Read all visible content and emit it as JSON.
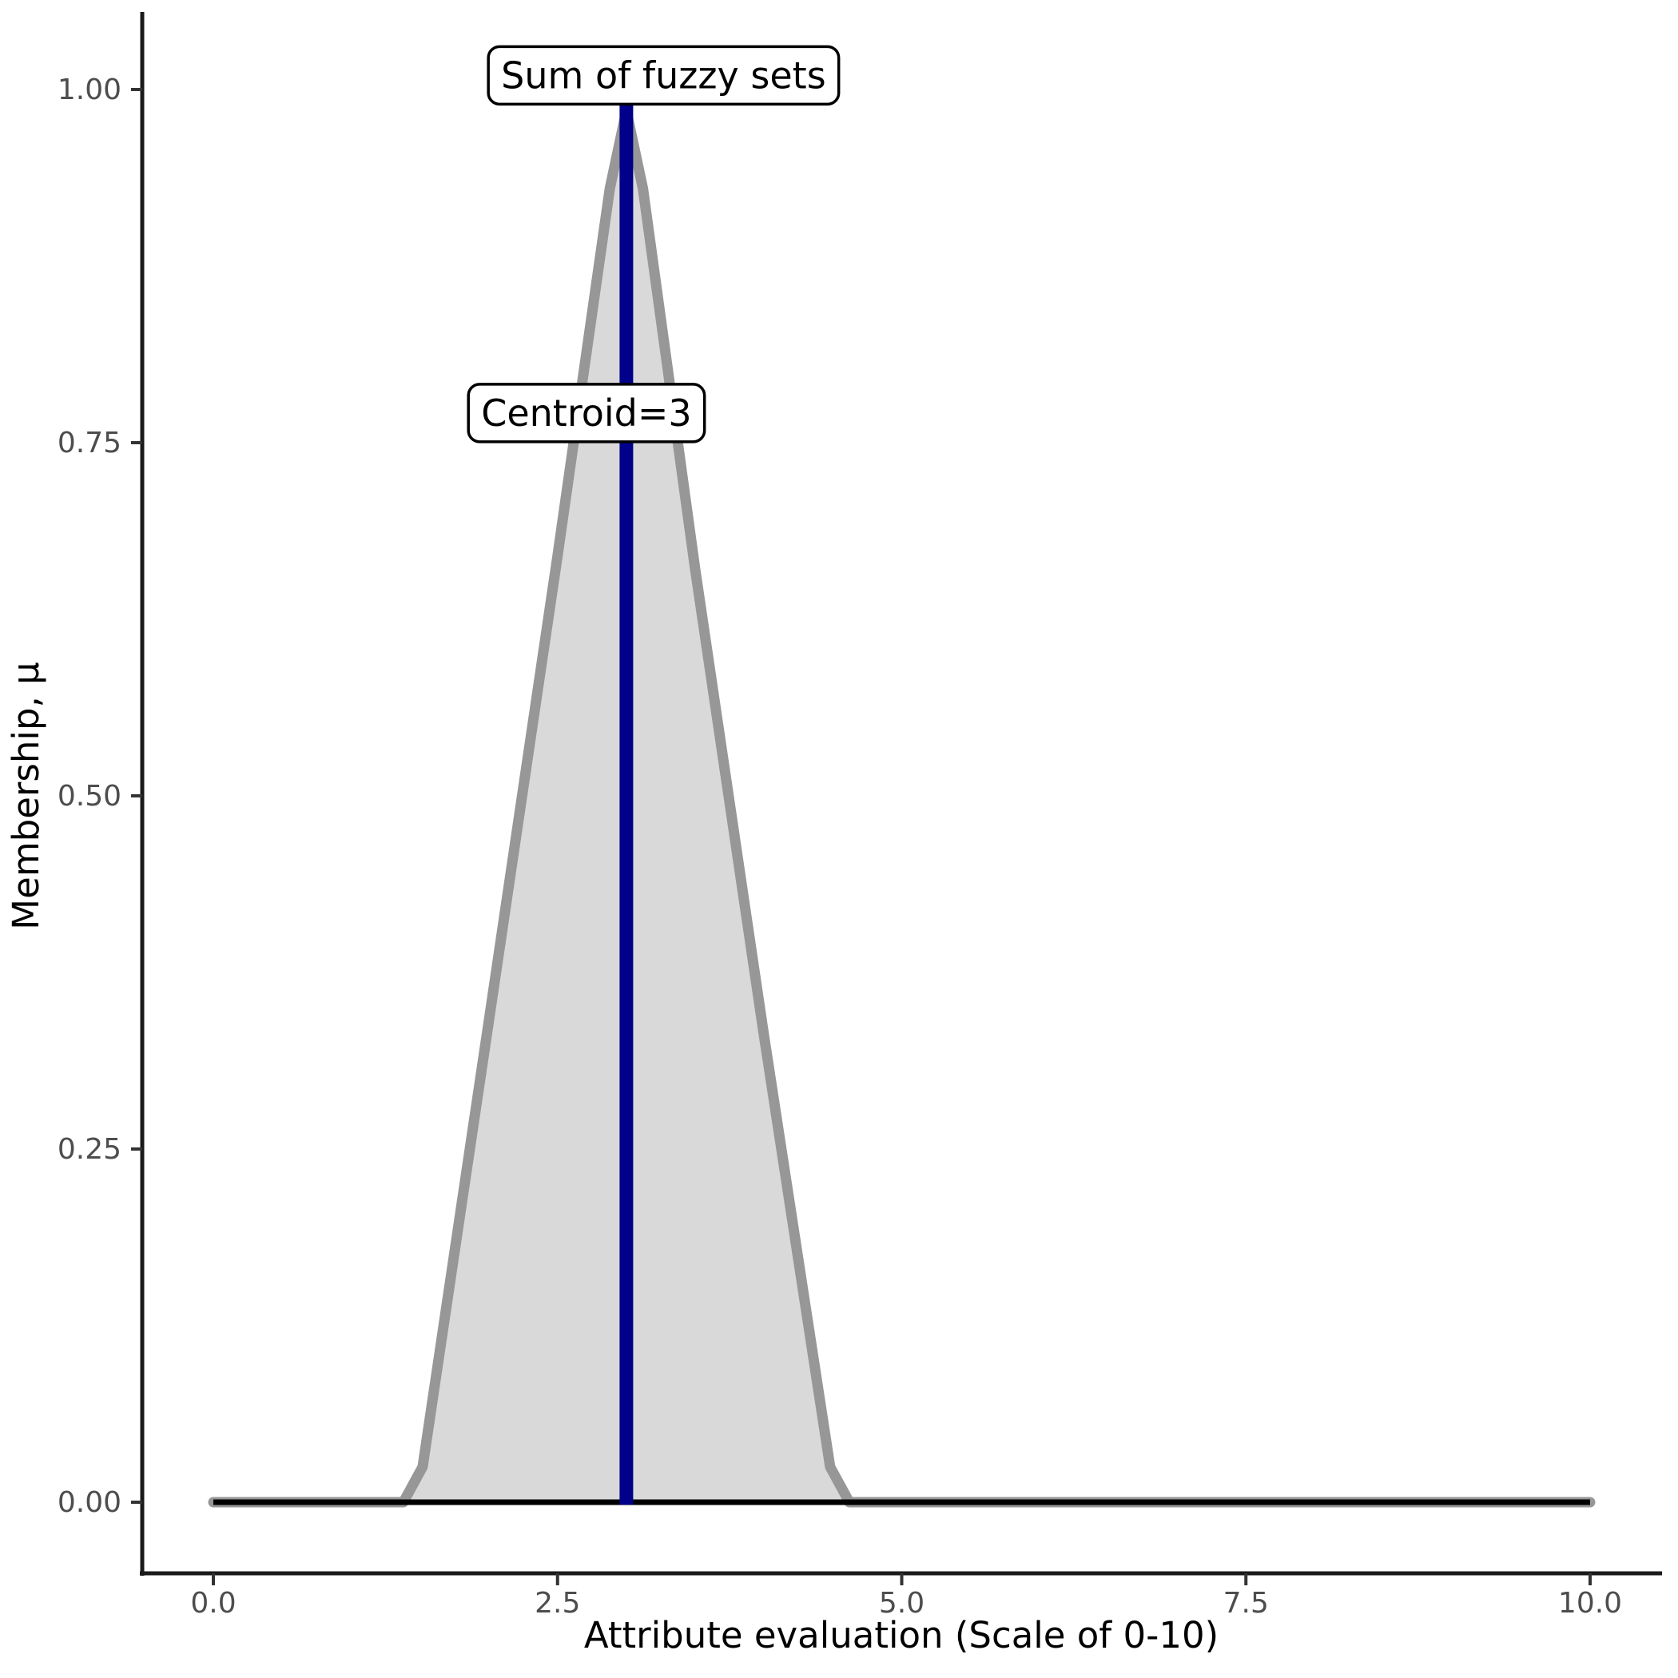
{
  "chart_data": {
    "type": "area",
    "title": "",
    "xlabel": "Attribute evaluation (Scale of 0-10)",
    "ylabel": "Membership, μ",
    "xlim": [
      0,
      10
    ],
    "ylim": [
      0,
      1
    ],
    "grid": false,
    "legend": "none",
    "x_ticks": [
      {
        "value": 0.0,
        "label": "0.0"
      },
      {
        "value": 2.5,
        "label": "2.5"
      },
      {
        "value": 5.0,
        "label": "5.0"
      },
      {
        "value": 7.5,
        "label": "7.5"
      },
      {
        "value": 10.0,
        "label": "10.0"
      }
    ],
    "y_ticks": [
      {
        "value": 0.0,
        "label": "0.00"
      },
      {
        "value": 0.25,
        "label": "0.25"
      },
      {
        "value": 0.5,
        "label": "0.50"
      },
      {
        "value": 0.75,
        "label": "0.75"
      },
      {
        "value": 1.0,
        "label": "1.00"
      }
    ],
    "series": [
      {
        "name": "Sum of fuzzy sets",
        "kind": "membership-area",
        "fill": "#d9d9d9",
        "stroke": "#979797",
        "stroke_width": 13,
        "points": [
          [
            0,
            0
          ],
          [
            1.38,
            0
          ],
          [
            1.52,
            0.025
          ],
          [
            2.0,
            0.34
          ],
          [
            2.5,
            0.67
          ],
          [
            2.88,
            0.93
          ],
          [
            3.0,
            0.985
          ],
          [
            3.12,
            0.93
          ],
          [
            3.5,
            0.66
          ],
          [
            4.0,
            0.33
          ],
          [
            4.48,
            0.025
          ],
          [
            4.62,
            0
          ],
          [
            10,
            0
          ]
        ]
      }
    ],
    "baseline": {
      "y": 0,
      "color": "#000000",
      "width": 7,
      "x_start": 0,
      "x_end": 10
    },
    "centroid_line": {
      "x": 3,
      "y_bottom": 0,
      "y_top": 1.0,
      "color": "#00008B",
      "width": 17
    },
    "centroid_value": 3,
    "annotations": [
      {
        "id": "sum-label",
        "text": "Sum of fuzzy sets",
        "x": 3.27,
        "y": 1.01
      },
      {
        "id": "centroid-label",
        "text": "Centroid=3",
        "x": 2.71,
        "y": 0.771
      }
    ]
  },
  "style": {
    "axis_line_color": "#1a1a1a",
    "tick_color": "#333333",
    "tick_text_color": "#4d4d4d",
    "annotation_box_fill": "#ffffff",
    "annotation_box_border": "#000000",
    "background": "#ffffff"
  }
}
